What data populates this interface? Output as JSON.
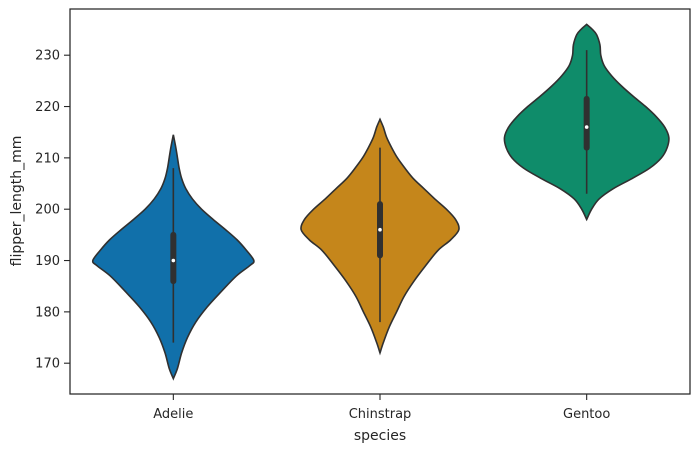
{
  "chart_data": {
    "type": "violin",
    "xlabel": "species",
    "ylabel": "flipper_length_mm",
    "ylim": [
      164,
      239
    ],
    "yticks": [
      170,
      180,
      190,
      200,
      210,
      220,
      230
    ],
    "categories": [
      "Adelie",
      "Chinstrap",
      "Gentoo"
    ],
    "grid": false,
    "series": [
      {
        "category": "Adelie",
        "color": "#1170aa",
        "extent": [
          167,
          214.5
        ],
        "whisker": [
          174,
          208
        ],
        "q1": 186,
        "median": 190,
        "q3": 195,
        "profile": [
          [
            167,
            0
          ],
          [
            169,
            0.05
          ],
          [
            172,
            0.1
          ],
          [
            175,
            0.17
          ],
          [
            178,
            0.27
          ],
          [
            181,
            0.41
          ],
          [
            184,
            0.58
          ],
          [
            187,
            0.76
          ],
          [
            189,
            0.92
          ],
          [
            190,
            0.97
          ],
          [
            192,
            0.88
          ],
          [
            194,
            0.77
          ],
          [
            196,
            0.63
          ],
          [
            198,
            0.48
          ],
          [
            200,
            0.34
          ],
          [
            202,
            0.23
          ],
          [
            204,
            0.15
          ],
          [
            206,
            0.1
          ],
          [
            208,
            0.07
          ],
          [
            210,
            0.05
          ],
          [
            212,
            0.03
          ],
          [
            214.5,
            0
          ]
        ]
      },
      {
        "category": "Chinstrap",
        "color": "#c5861b",
        "extent": [
          172,
          217.5
        ],
        "whisker": [
          178,
          212
        ],
        "q1": 191,
        "median": 196,
        "q3": 201,
        "profile": [
          [
            172,
            0
          ],
          [
            174,
            0.04
          ],
          [
            177,
            0.11
          ],
          [
            180,
            0.2
          ],
          [
            183,
            0.29
          ],
          [
            186,
            0.41
          ],
          [
            189,
            0.55
          ],
          [
            192,
            0.7
          ],
          [
            194,
            0.85
          ],
          [
            196,
            0.95
          ],
          [
            198,
            0.91
          ],
          [
            200,
            0.8
          ],
          [
            202,
            0.66
          ],
          [
            204,
            0.53
          ],
          [
            206,
            0.4
          ],
          [
            208,
            0.3
          ],
          [
            210,
            0.21
          ],
          [
            212,
            0.14
          ],
          [
            214,
            0.08
          ],
          [
            216,
            0.04
          ],
          [
            217.5,
            0
          ]
        ]
      },
      {
        "category": "Gentoo",
        "color": "#0f8c6a",
        "extent": [
          198,
          236
        ],
        "whisker": [
          203,
          231
        ],
        "q1": 212,
        "median": 216,
        "q3": 221.5,
        "profile": [
          [
            198,
            0
          ],
          [
            200,
            0.06
          ],
          [
            202,
            0.15
          ],
          [
            204,
            0.32
          ],
          [
            206,
            0.55
          ],
          [
            208,
            0.76
          ],
          [
            210,
            0.9
          ],
          [
            212,
            0.97
          ],
          [
            214,
            0.99
          ],
          [
            216,
            0.94
          ],
          [
            218,
            0.84
          ],
          [
            220,
            0.71
          ],
          [
            222,
            0.56
          ],
          [
            224,
            0.42
          ],
          [
            226,
            0.3
          ],
          [
            228,
            0.21
          ],
          [
            230,
            0.17
          ],
          [
            232,
            0.16
          ],
          [
            234,
            0.12
          ],
          [
            235,
            0.07
          ],
          [
            236,
            0
          ]
        ]
      }
    ]
  }
}
